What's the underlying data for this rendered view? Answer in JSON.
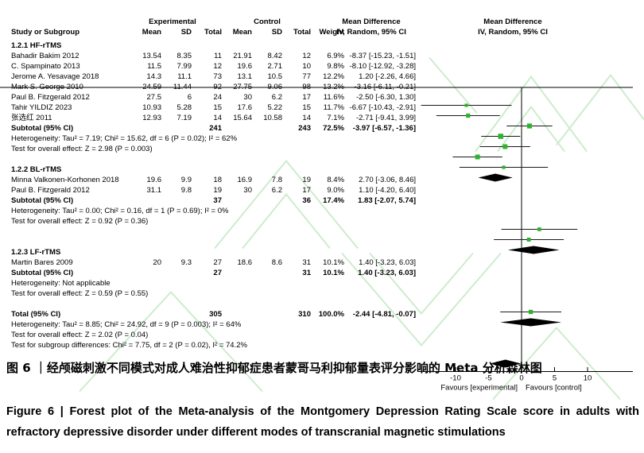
{
  "header": {
    "col_study": "Study or Subgroup",
    "group1": "Experimental",
    "group2": "Control",
    "col_mean": "Mean",
    "col_sd": "SD",
    "col_total": "Total",
    "col_weight": "Weight",
    "md_title": "Mean Difference",
    "md_sub": "IV, Random, 95% CI"
  },
  "colors": {
    "marker_green": "#2db32d",
    "diamond_black": "#000000",
    "ci_line": "#1a1a1a",
    "watermark_green": "#cdeccd"
  },
  "forest": {
    "labels": {
      "subtotal": "Subtotal (95% CI)"
    },
    "axis": {
      "ticks": [
        -10,
        -5,
        0,
        5,
        10
      ],
      "favours_left": "Favours [experimental]",
      "favours_right": "Favours [control]"
    },
    "subgroups": [
      {
        "label": "1.2.1 HF-rTMS",
        "studies": [
          {
            "name": "Bahadir Bakim 2012",
            "mean1": "13.54",
            "sd1": "8.35",
            "total1": "11",
            "mean2": "21.91",
            "sd2": "8.42",
            "total2": "12",
            "weight": "6.9%",
            "w": 6.9,
            "ci_text": "-8.37 [-15.23, -1.51]",
            "md": -8.37,
            "lo": -15.23,
            "hi": -1.51
          },
          {
            "name": "C. Spampinato 2013",
            "mean1": "11.5",
            "sd1": "7.99",
            "total1": "12",
            "mean2": "19.6",
            "sd2": "2.71",
            "total2": "10",
            "weight": "9.8%",
            "w": 9.8,
            "ci_text": "-8.10 [-12.92, -3.28]",
            "md": -8.1,
            "lo": -12.92,
            "hi": -3.28
          },
          {
            "name": "Jerome A. Yesavage 2018",
            "mean1": "14.3",
            "sd1": "11.1",
            "total1": "73",
            "mean2": "13.1",
            "sd2": "10.5",
            "total2": "77",
            "weight": "12.2%",
            "w": 12.2,
            "ci_text": "1.20 [-2.26, 4.66]",
            "md": 1.2,
            "lo": -2.26,
            "hi": 4.66
          },
          {
            "name": "Mark S. George 2010",
            "mean1": "24.59",
            "sd1": "11.44",
            "total1": "92",
            "mean2": "27.75",
            "sd2": "9.06",
            "total2": "98",
            "weight": "13.2%",
            "w": 13.2,
            "ci_text": "-3.16 [-6.11, -0.21]",
            "md": -3.16,
            "lo": -6.11,
            "hi": -0.21
          },
          {
            "name": "Paul B. Fitzgerald 2012",
            "mean1": "27.5",
            "sd1": "6",
            "total1": "24",
            "mean2": "30",
            "sd2": "6.2",
            "total2": "17",
            "weight": "11.6%",
            "w": 11.6,
            "ci_text": "-2.50 [-6.30, 1.30]",
            "md": -2.5,
            "lo": -6.3,
            "hi": 1.3
          },
          {
            "name": "Tahir YILDIZ 2023",
            "mean1": "10.93",
            "sd1": "5.28",
            "total1": "15",
            "mean2": "17.6",
            "sd2": "5.22",
            "total2": "15",
            "weight": "11.7%",
            "w": 11.7,
            "ci_text": "-6.67 [-10.43, -2.91]",
            "md": -6.67,
            "lo": -10.43,
            "hi": -2.91
          },
          {
            "name": "张选红 2011",
            "mean1": "12.93",
            "sd1": "7.19",
            "total1": "14",
            "mean2": "15.64",
            "sd2": "10.58",
            "total2": "14",
            "weight": "7.1%",
            "w": 7.1,
            "ci_text": "-2.71 [-9.41, 3.99]",
            "md": -2.71,
            "lo": -9.41,
            "hi": 3.99
          }
        ],
        "subtotal": {
          "total1": "241",
          "total2": "243",
          "weight": "72.5%",
          "ci_text": "-3.97 [-6.57, -1.36]",
          "md": -3.97,
          "lo": -6.57,
          "hi": -1.36
        },
        "heterogeneity": "Heterogeneity: Tau² = 7.19; Chi² = 15.62, df = 6 (P = 0.02); I² = 62%",
        "overall": "Test for overall effect: Z = 2.98 (P = 0.003)"
      },
      {
        "label": "1.2.2 BL-rTMS",
        "studies": [
          {
            "name": "Minna Valkonen-Korhonen 2018",
            "mean1": "19.6",
            "sd1": "9.9",
            "total1": "18",
            "mean2": "16.9",
            "sd2": "7.8",
            "total2": "19",
            "weight": "8.4%",
            "w": 8.4,
            "ci_text": "2.70 [-3.06, 8.46]",
            "md": 2.7,
            "lo": -3.06,
            "hi": 8.46
          },
          {
            "name": "Paul B. Fitzgerald 2012",
            "mean1": "31.1",
            "sd1": "9.8",
            "total1": "19",
            "mean2": "30",
            "sd2": "6.2",
            "total2": "17",
            "weight": "9.0%",
            "w": 9.0,
            "ci_text": "1.10 [-4.20, 6.40]",
            "md": 1.1,
            "lo": -4.2,
            "hi": 6.4
          }
        ],
        "subtotal": {
          "total1": "37",
          "total2": "36",
          "weight": "17.4%",
          "ci_text": "1.83 [-2.07, 5.74]",
          "md": 1.83,
          "lo": -2.07,
          "hi": 5.74
        },
        "heterogeneity": "Heterogeneity: Tau² = 0.00; Chi² = 0.16, df = 1 (P = 0.69); I² = 0%",
        "overall": "Test for overall effect: Z = 0.92 (P = 0.36)"
      },
      {
        "label": "1.2.3 LF-rTMS",
        "studies": [
          {
            "name": "Martin Bares 2009",
            "mean1": "20",
            "sd1": "9.3",
            "total1": "27",
            "mean2": "18.6",
            "sd2": "8.6",
            "total2": "31",
            "weight": "10.1%",
            "w": 10.1,
            "ci_text": "1.40 [-3.23, 6.03]",
            "md": 1.4,
            "lo": -3.23,
            "hi": 6.03
          }
        ],
        "subtotal": {
          "total1": "27",
          "total2": "31",
          "weight": "10.1%",
          "ci_text": "1.40 [-3.23, 6.03]",
          "md": 1.4,
          "lo": -3.23,
          "hi": 6.03
        },
        "heterogeneity": "Heterogeneity: Not applicable",
        "overall": "Test for overall effect: Z = 0.59 (P = 0.55)"
      }
    ],
    "total": {
      "label": "Total (95% CI)",
      "total1": "305",
      "total2": "310",
      "weight": "100.0%",
      "ci_text": "-2.44 [-4.81, -0.07]",
      "md": -2.44,
      "lo": -4.81,
      "hi": -0.07,
      "heterogeneity": "Heterogeneity: Tau² = 8.85; Chi² = 24.92, df = 9 (P = 0.003); I² = 64%",
      "overall": "Test for overall effect: Z = 2.02 (P = 0.04)",
      "subgroup_diff": "Test for subgroup differences: Chi² = 7.75, df = 2 (P = 0.02), I² = 74.2%"
    }
  },
  "captions": {
    "zh": "图 6 ｜经颅磁刺激不同模式对成人难治性抑郁症患者蒙哥马利抑郁量表评分影响的 Meta 分析森林图",
    "en": "Figure 6  |  Forest plot of the Meta-analysis of the Montgomery Depression Rating Scale score in adults with refractory depressive disorder under different modes of transcranial magnetic stimulations"
  },
  "chart_data": {
    "type": "scatter",
    "variant": "forest-plot-mean-difference",
    "title": "Mean Difference IV, Random, 95% CI",
    "xlabel": "Mean Difference",
    "x_ticks": [
      -10,
      -5,
      0,
      5,
      10
    ],
    "xlim": [
      -15.8,
      16.8
    ],
    "grid": false,
    "legend_position": "none",
    "annotations": [
      "Favours [experimental]",
      "Favours [control]"
    ],
    "series": [
      {
        "name": "1.2.1 HF-rTMS",
        "points": [
          {
            "label": "Bahadir Bakim 2012",
            "md": -8.37,
            "ci": [
              -15.23,
              -1.51
            ],
            "weight_pct": 6.9
          },
          {
            "label": "C. Spampinato 2013",
            "md": -8.1,
            "ci": [
              -12.92,
              -3.28
            ],
            "weight_pct": 9.8
          },
          {
            "label": "Jerome A. Yesavage 2018",
            "md": 1.2,
            "ci": [
              -2.26,
              4.66
            ],
            "weight_pct": 12.2
          },
          {
            "label": "Mark S. George 2010",
            "md": -3.16,
            "ci": [
              -6.11,
              -0.21
            ],
            "weight_pct": 13.2
          },
          {
            "label": "Paul B. Fitzgerald 2012",
            "md": -2.5,
            "ci": [
              -6.3,
              1.3
            ],
            "weight_pct": 11.6
          },
          {
            "label": "Tahir YILDIZ 2023",
            "md": -6.67,
            "ci": [
              -10.43,
              -2.91
            ],
            "weight_pct": 11.7
          },
          {
            "label": "张选红 2011",
            "md": -2.71,
            "ci": [
              -9.41,
              3.99
            ],
            "weight_pct": 7.1
          }
        ],
        "subtotal": {
          "md": -3.97,
          "ci": [
            -6.57,
            -1.36
          ],
          "weight_pct": 72.5
        }
      },
      {
        "name": "1.2.2 BL-rTMS",
        "points": [
          {
            "label": "Minna Valkonen-Korhonen 2018",
            "md": 2.7,
            "ci": [
              -3.06,
              8.46
            ],
            "weight_pct": 8.4
          },
          {
            "label": "Paul B. Fitzgerald 2012",
            "md": 1.1,
            "ci": [
              -4.2,
              6.4
            ],
            "weight_pct": 9.0
          }
        ],
        "subtotal": {
          "md": 1.83,
          "ci": [
            -2.07,
            5.74
          ],
          "weight_pct": 17.4
        }
      },
      {
        "name": "1.2.3 LF-rTMS",
        "points": [
          {
            "label": "Martin Bares 2009",
            "md": 1.4,
            "ci": [
              -3.23,
              6.03
            ],
            "weight_pct": 10.1
          }
        ],
        "subtotal": {
          "md": 1.4,
          "ci": [
            -3.23,
            6.03
          ],
          "weight_pct": 10.1
        }
      }
    ],
    "total": {
      "md": -2.44,
      "ci": [
        -4.81,
        -0.07
      ],
      "weight_pct": 100.0
    }
  }
}
